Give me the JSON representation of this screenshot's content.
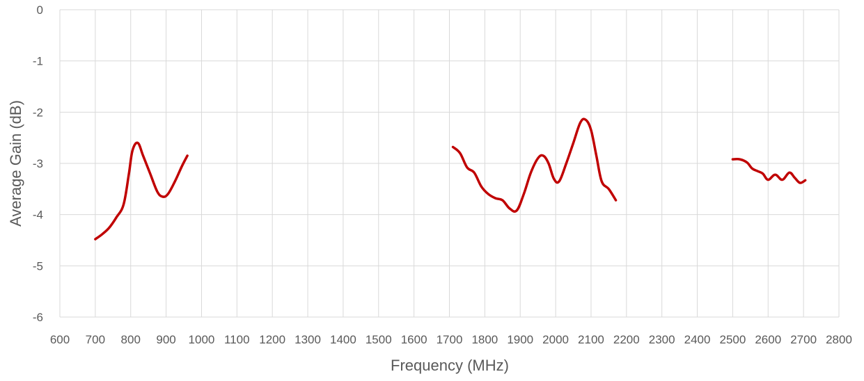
{
  "chart_data": {
    "type": "line",
    "title": "",
    "xlabel": "Frequency (MHz)",
    "ylabel": "Average Gain (dB)",
    "xlim": [
      600,
      2800
    ],
    "ylim": [
      -6,
      0
    ],
    "x_ticks": [
      600,
      700,
      800,
      900,
      1000,
      1100,
      1200,
      1300,
      1400,
      1500,
      1600,
      1700,
      1800,
      1900,
      2000,
      2100,
      2200,
      2300,
      2400,
      2500,
      2600,
      2700,
      2800
    ],
    "y_ticks": [
      0,
      -1,
      -2,
      -3,
      -4,
      -5,
      -6
    ],
    "grid": true,
    "legend": "none",
    "color": "#c00000",
    "series": [
      {
        "segments": [
          [
            [
              700,
              -4.48
            ],
            [
              720,
              -4.38
            ],
            [
              740,
              -4.25
            ],
            [
              760,
              -4.05
            ],
            [
              780,
              -3.8
            ],
            [
              795,
              -3.2
            ],
            [
              805,
              -2.75
            ],
            [
              820,
              -2.6
            ],
            [
              835,
              -2.85
            ],
            [
              855,
              -3.2
            ],
            [
              875,
              -3.55
            ],
            [
              890,
              -3.65
            ],
            [
              905,
              -3.6
            ],
            [
              925,
              -3.35
            ],
            [
              945,
              -3.05
            ],
            [
              960,
              -2.85
            ]
          ],
          [
            [
              1710,
              -2.68
            ],
            [
              1730,
              -2.8
            ],
            [
              1750,
              -3.08
            ],
            [
              1770,
              -3.18
            ],
            [
              1790,
              -3.45
            ],
            [
              1810,
              -3.6
            ],
            [
              1830,
              -3.68
            ],
            [
              1850,
              -3.72
            ],
            [
              1870,
              -3.88
            ],
            [
              1890,
              -3.92
            ],
            [
              1910,
              -3.6
            ],
            [
              1930,
              -3.18
            ],
            [
              1950,
              -2.9
            ],
            [
              1965,
              -2.85
            ],
            [
              1980,
              -3.0
            ],
            [
              1995,
              -3.3
            ],
            [
              2010,
              -3.35
            ],
            [
              2030,
              -3.0
            ],
            [
              2050,
              -2.6
            ],
            [
              2070,
              -2.2
            ],
            [
              2085,
              -2.15
            ],
            [
              2100,
              -2.35
            ],
            [
              2115,
              -2.85
            ],
            [
              2130,
              -3.35
            ],
            [
              2150,
              -3.5
            ],
            [
              2170,
              -3.72
            ]
          ],
          [
            [
              2500,
              -2.92
            ],
            [
              2520,
              -2.92
            ],
            [
              2540,
              -2.98
            ],
            [
              2555,
              -3.1
            ],
            [
              2570,
              -3.15
            ],
            [
              2585,
              -3.2
            ],
            [
              2600,
              -3.32
            ],
            [
              2620,
              -3.22
            ],
            [
              2640,
              -3.32
            ],
            [
              2660,
              -3.18
            ],
            [
              2675,
              -3.28
            ],
            [
              2690,
              -3.38
            ],
            [
              2705,
              -3.33
            ]
          ]
        ]
      }
    ]
  }
}
